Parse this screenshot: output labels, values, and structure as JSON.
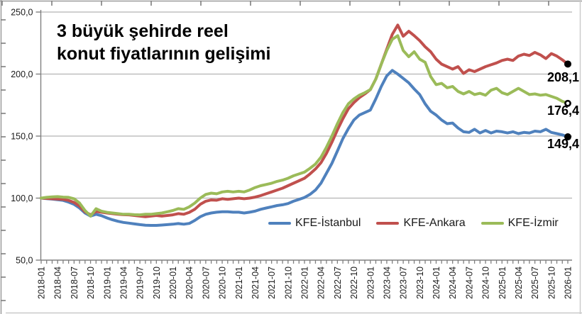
{
  "chart_data": {
    "type": "line",
    "title": "3 büyük şehirde reel konut fiyatlarının gelişimi",
    "title_lines": [
      "3 büyük şehirde reel",
      "konut fiyatlarının gelişimi"
    ],
    "x_unit": "month",
    "x_range": [
      "2018-01",
      "2026-01"
    ],
    "points_per_series": 97,
    "x_tick_labels": [
      "2018-01",
      "2018-04",
      "2018-07",
      "2018-10",
      "2019-01",
      "2019-04",
      "2019-07",
      "2019-10",
      "2020-01",
      "2020-04",
      "2020-07",
      "2020-10",
      "2021-01",
      "2021-04",
      "2021-07",
      "2021-10",
      "2022-01",
      "2022-04",
      "2022-07",
      "2022-10",
      "2023-01",
      "2023-04",
      "2023-07",
      "2023-10",
      "2024-01",
      "2024-04",
      "2024-07",
      "2024-10",
      "2025-01",
      "2025-04",
      "2025-07",
      "2025-10",
      "2026-01"
    ],
    "y_axis": {
      "min": 50,
      "max": 250,
      "tick_labels": [
        "250,0",
        "200,0",
        "150,0",
        "100,0",
        "50,0"
      ],
      "tick_values": [
        250,
        200,
        150,
        100,
        50
      ],
      "number_format": "comma-decimal"
    },
    "grid": true,
    "legend_position": "inside-bottom-right",
    "colors": {
      "istanbul": "#4F81BD",
      "ankara": "#C0504D",
      "izmir": "#9BBB59",
      "gridline": "#b3b3b3",
      "axis": "#808080",
      "tick_text": "#1a1a1a",
      "end_marker": "#000000"
    },
    "series": [
      {
        "name": "KFE-İstanbul",
        "color": "#4F81BD",
        "end_label": "149,4",
        "end_value": 149.4,
        "end_marker": "solid",
        "values": [
          100,
          99.6,
          99.2,
          98.7,
          98.2,
          96.8,
          95,
          92,
          88,
          85.5,
          87,
          85.8,
          84,
          82.5,
          81.3,
          80.4,
          79.8,
          79.2,
          78.6,
          78.2,
          78,
          78,
          78.3,
          78.6,
          79,
          79.5,
          79,
          79.6,
          82,
          85,
          87,
          88,
          88.6,
          89,
          89,
          88.6,
          88.6,
          88,
          88.6,
          89.5,
          91,
          92,
          93,
          94,
          94.6,
          95.6,
          97.5,
          99,
          100.5,
          103,
          106.5,
          112,
          120,
          128,
          138,
          148,
          156,
          163,
          167,
          169,
          171,
          180,
          190,
          198.5,
          203,
          200,
          196.5,
          193,
          188,
          183.5,
          176,
          170,
          167,
          163,
          160,
          160.5,
          156.5,
          153.5,
          153,
          155.5,
          152.5,
          154.5,
          152.5,
          154,
          153.5,
          152.5,
          153.5,
          152,
          153,
          152.5,
          154,
          153.5,
          155.5,
          153,
          152,
          151,
          149.4
        ]
      },
      {
        "name": "KFE-Ankara",
        "color": "#C0504D",
        "end_label": "208,1",
        "end_value": 208.1,
        "end_marker": "solid",
        "values": [
          100,
          99.7,
          99.5,
          99.2,
          99,
          98.2,
          96.5,
          93.5,
          89,
          86.5,
          89.2,
          88.6,
          88,
          87.5,
          87,
          86.6,
          86.5,
          86,
          85.5,
          85,
          85.5,
          86,
          85.5,
          86,
          86.5,
          87.5,
          87,
          88.5,
          91,
          95,
          97.5,
          98.5,
          98.3,
          99.5,
          99,
          99.5,
          100,
          99.5,
          100,
          100.8,
          102,
          103.5,
          105,
          106.5,
          108,
          110,
          112,
          114,
          116,
          119.5,
          123.5,
          128.5,
          136,
          145,
          155,
          164,
          172,
          177,
          181,
          184,
          187.5,
          196,
          208,
          220,
          232,
          239.5,
          230.5,
          234.5,
          231,
          227,
          222,
          218,
          212,
          208,
          206,
          204,
          206,
          200.5,
          203.5,
          202,
          204,
          206,
          207.5,
          209,
          211,
          212,
          211,
          214.5,
          216,
          215,
          217.5,
          215.5,
          212.5,
          216.5,
          214.5,
          211.5,
          208.1
        ]
      },
      {
        "name": "KFE-İzmir",
        "color": "#9BBB59",
        "end_label": "176,4",
        "end_value": 176.4,
        "end_marker": "ring",
        "values": [
          100,
          100.6,
          101,
          101.2,
          100.8,
          100.6,
          99.5,
          96,
          90,
          85.5,
          91.5,
          89.5,
          88.5,
          88,
          87.5,
          87,
          87,
          86.6,
          86.5,
          87,
          87,
          87.5,
          88,
          89,
          90,
          91.5,
          91,
          93,
          96,
          100,
          103,
          104,
          103.5,
          105,
          105.5,
          105,
          105.5,
          105,
          106.5,
          108.5,
          110,
          111,
          112,
          113.5,
          114.5,
          116,
          118,
          119.5,
          121,
          124,
          127.5,
          133,
          141,
          150,
          160,
          169,
          176,
          180,
          183,
          185,
          187.5,
          196,
          208,
          219,
          228,
          231,
          219,
          214,
          218,
          212,
          209.5,
          198,
          191.5,
          192.5,
          189,
          190,
          186,
          184,
          186,
          183.5,
          184.5,
          183,
          187,
          188.5,
          185,
          183.5,
          186,
          188.5,
          186,
          183.5,
          184,
          183,
          183.5,
          182,
          180.5,
          178,
          176.4
        ]
      }
    ]
  }
}
